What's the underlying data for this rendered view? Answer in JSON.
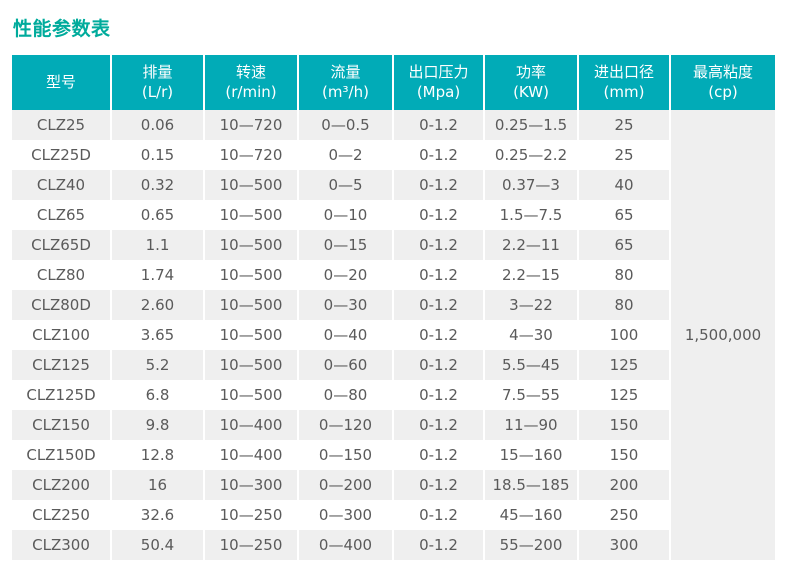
{
  "title": "性能参数表",
  "colors": {
    "title_text": "#00ab9c",
    "header_bg": "#01abb7",
    "header_text": "#ffffff",
    "row_alt_bg": "#efefef",
    "row_bg": "#ffffff",
    "body_text": "#5a5a5a"
  },
  "table": {
    "columns": [
      {
        "label": "型号",
        "sub": ""
      },
      {
        "label": "排量",
        "sub": "(L/r)"
      },
      {
        "label": "转速",
        "sub": "(r/min)"
      },
      {
        "label": "流量",
        "sub": "(m³/h)"
      },
      {
        "label": "出口压力",
        "sub": "(Mpa)"
      },
      {
        "label": "功率",
        "sub": "(KW)"
      },
      {
        "label": "进出口径",
        "sub": "(mm)"
      },
      {
        "label": "最高粘度",
        "sub": "(cp)"
      }
    ],
    "max_viscosity": "1,500,000",
    "rows": [
      [
        "CLZ25",
        "0.06",
        "10—720",
        "0—0.5",
        "0-1.2",
        "0.25—1.5",
        "25"
      ],
      [
        "CLZ25D",
        "0.15",
        "10—720",
        "0—2",
        "0-1.2",
        "0.25—2.2",
        "25"
      ],
      [
        "CLZ40",
        "0.32",
        "10—500",
        "0—5",
        "0-1.2",
        "0.37—3",
        "40"
      ],
      [
        "CLZ65",
        "0.65",
        "10—500",
        "0—10",
        "0-1.2",
        "1.5—7.5",
        "65"
      ],
      [
        "CLZ65D",
        "1.1",
        "10—500",
        "0—15",
        "0-1.2",
        "2.2—11",
        "65"
      ],
      [
        "CLZ80",
        "1.74",
        "10—500",
        "0—20",
        "0-1.2",
        "2.2—15",
        "80"
      ],
      [
        "CLZ80D",
        "2.60",
        "10—500",
        "0—30",
        "0-1.2",
        "3—22",
        "80"
      ],
      [
        "CLZ100",
        "3.65",
        "10—500",
        "0—40",
        "0-1.2",
        "4—30",
        "100"
      ],
      [
        "CLZ125",
        "5.2",
        "10—500",
        "0—60",
        "0-1.2",
        "5.5—45",
        "125"
      ],
      [
        "CLZ125D",
        "6.8",
        "10—500",
        "0—80",
        "0-1.2",
        "7.5—55",
        "125"
      ],
      [
        "CLZ150",
        "9.8",
        "10—400",
        "0—120",
        "0-1.2",
        "11—90",
        "150"
      ],
      [
        "CLZ150D",
        "12.8",
        "10—400",
        "0—150",
        "0-1.2",
        "15—160",
        "150"
      ],
      [
        "CLZ200",
        "16",
        "10—300",
        "0—200",
        "0-1.2",
        "18.5—185",
        "200"
      ],
      [
        "CLZ250",
        "32.6",
        "10—250",
        "0—300",
        "0-1.2",
        "45—160",
        "250"
      ],
      [
        "CLZ300",
        "50.4",
        "10—250",
        "0—400",
        "0-1.2",
        "55—200",
        "300"
      ]
    ]
  }
}
